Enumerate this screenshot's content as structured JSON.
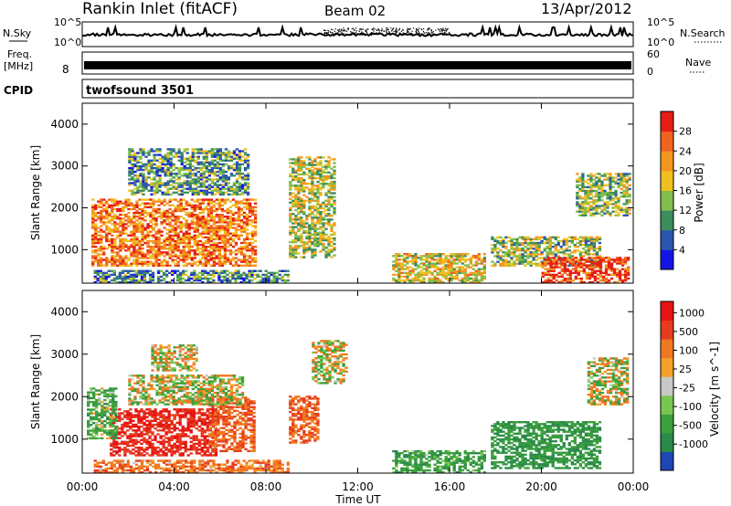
{
  "header": {
    "station": "Rankin Inlet (fitACF)",
    "beam": "Beam 02",
    "date": "13/Apr/2012",
    "program": "twofsound 3501"
  },
  "noise_panel": {
    "left_label": "N.Sky",
    "right_label": "N.Search",
    "left_ticks": [
      "10^5",
      "10^0"
    ],
    "right_ticks": [
      "10^5",
      "10^0"
    ]
  },
  "freq_panel": {
    "left_label_1": "Freq.",
    "left_label_2": "[MHz]",
    "left_tick": "8",
    "right_label": "Nave",
    "right_ticks": [
      "60",
      "0"
    ]
  },
  "cpid_label": "CPID",
  "x_axis": {
    "label": "Time UT",
    "ticks": [
      "00:00",
      "04:00",
      "08:00",
      "12:00",
      "16:00",
      "20:00",
      "00:00"
    ]
  },
  "chart_data": [
    {
      "type": "heatmap",
      "name": "power",
      "ylabel": "Slant Range [km]",
      "yticks": [
        "1000",
        "2000",
        "3000",
        "4000"
      ],
      "ylim": [
        200,
        4500
      ],
      "xlim_hours": [
        0,
        24
      ],
      "colorbar_label": "Power [dB]",
      "colorbar_ticks": [
        "4",
        "8",
        "12",
        "16",
        "20",
        "24",
        "28"
      ],
      "colorbar_colors": [
        "#1414e6",
        "#2a55b0",
        "#3d8c5c",
        "#7fbf4a",
        "#f0c020",
        "#f5961e",
        "#f0641e",
        "#e61e14"
      ],
      "regions": [
        {
          "t": [
            0.4,
            7.6
          ],
          "r": [
            600,
            2200
          ],
          "level": 0.75
        },
        {
          "t": [
            2.0,
            7.2
          ],
          "r": [
            2300,
            3400
          ],
          "level": 0.35
        },
        {
          "t": [
            9.0,
            11.0
          ],
          "r": [
            800,
            3200
          ],
          "level": 0.5
        },
        {
          "t": [
            13.5,
            17.5
          ],
          "r": [
            200,
            900
          ],
          "level": 0.55
        },
        {
          "t": [
            17.8,
            22.5
          ],
          "r": [
            600,
            1300
          ],
          "level": 0.45
        },
        {
          "t": [
            20.0,
            23.8
          ],
          "r": [
            200,
            800
          ],
          "level": 0.9
        },
        {
          "t": [
            21.5,
            23.8
          ],
          "r": [
            1800,
            2800
          ],
          "level": 0.45
        },
        {
          "t": [
            0.5,
            9.0
          ],
          "r": [
            200,
            500
          ],
          "level": 0.3
        }
      ]
    },
    {
      "type": "heatmap",
      "name": "velocity",
      "ylabel": "Slant Range [km]",
      "yticks": [
        "1000",
        "2000",
        "3000",
        "4000"
      ],
      "ylim": [
        200,
        4500
      ],
      "xlim_hours": [
        0,
        24
      ],
      "colorbar_label": "Velocity [m s^-1]",
      "colorbar_ticks": [
        "1000",
        "500",
        "100",
        "25",
        "-25",
        "-100",
        "-500",
        "-1000"
      ],
      "colorbar_colors": [
        "#1e46b4",
        "#2a8a4a",
        "#3ca03c",
        "#78c850",
        "#c8c8c8",
        "#f5a028",
        "#f07820",
        "#e63c1e",
        "#e61414"
      ],
      "regions": [
        {
          "t": [
            1.2,
            5.8
          ],
          "r": [
            600,
            1700
          ],
          "v": 700
        },
        {
          "t": [
            0.2,
            1.5
          ],
          "r": [
            1000,
            2200
          ],
          "v": -150
        },
        {
          "t": [
            5.5,
            7.5
          ],
          "r": [
            700,
            2000
          ],
          "v": 300
        },
        {
          "t": [
            2.0,
            7.0
          ],
          "r": [
            1800,
            2500
          ],
          "v": 0
        },
        {
          "t": [
            3.0,
            5.0
          ],
          "r": [
            2600,
            3200
          ],
          "v": 0
        },
        {
          "t": [
            9.0,
            10.2
          ],
          "r": [
            900,
            2000
          ],
          "v": 300
        },
        {
          "t": [
            10.0,
            11.5
          ],
          "r": [
            2300,
            3300
          ],
          "v": 0
        },
        {
          "t": [
            13.5,
            17.5
          ],
          "r": [
            200,
            700
          ],
          "v": -200
        },
        {
          "t": [
            17.8,
            22.5
          ],
          "r": [
            300,
            1400
          ],
          "v": -300
        },
        {
          "t": [
            22.0,
            23.8
          ],
          "r": [
            1800,
            2900
          ],
          "v": 0
        },
        {
          "t": [
            0.5,
            9.0
          ],
          "r": [
            200,
            500
          ],
          "v": 200
        }
      ]
    }
  ]
}
